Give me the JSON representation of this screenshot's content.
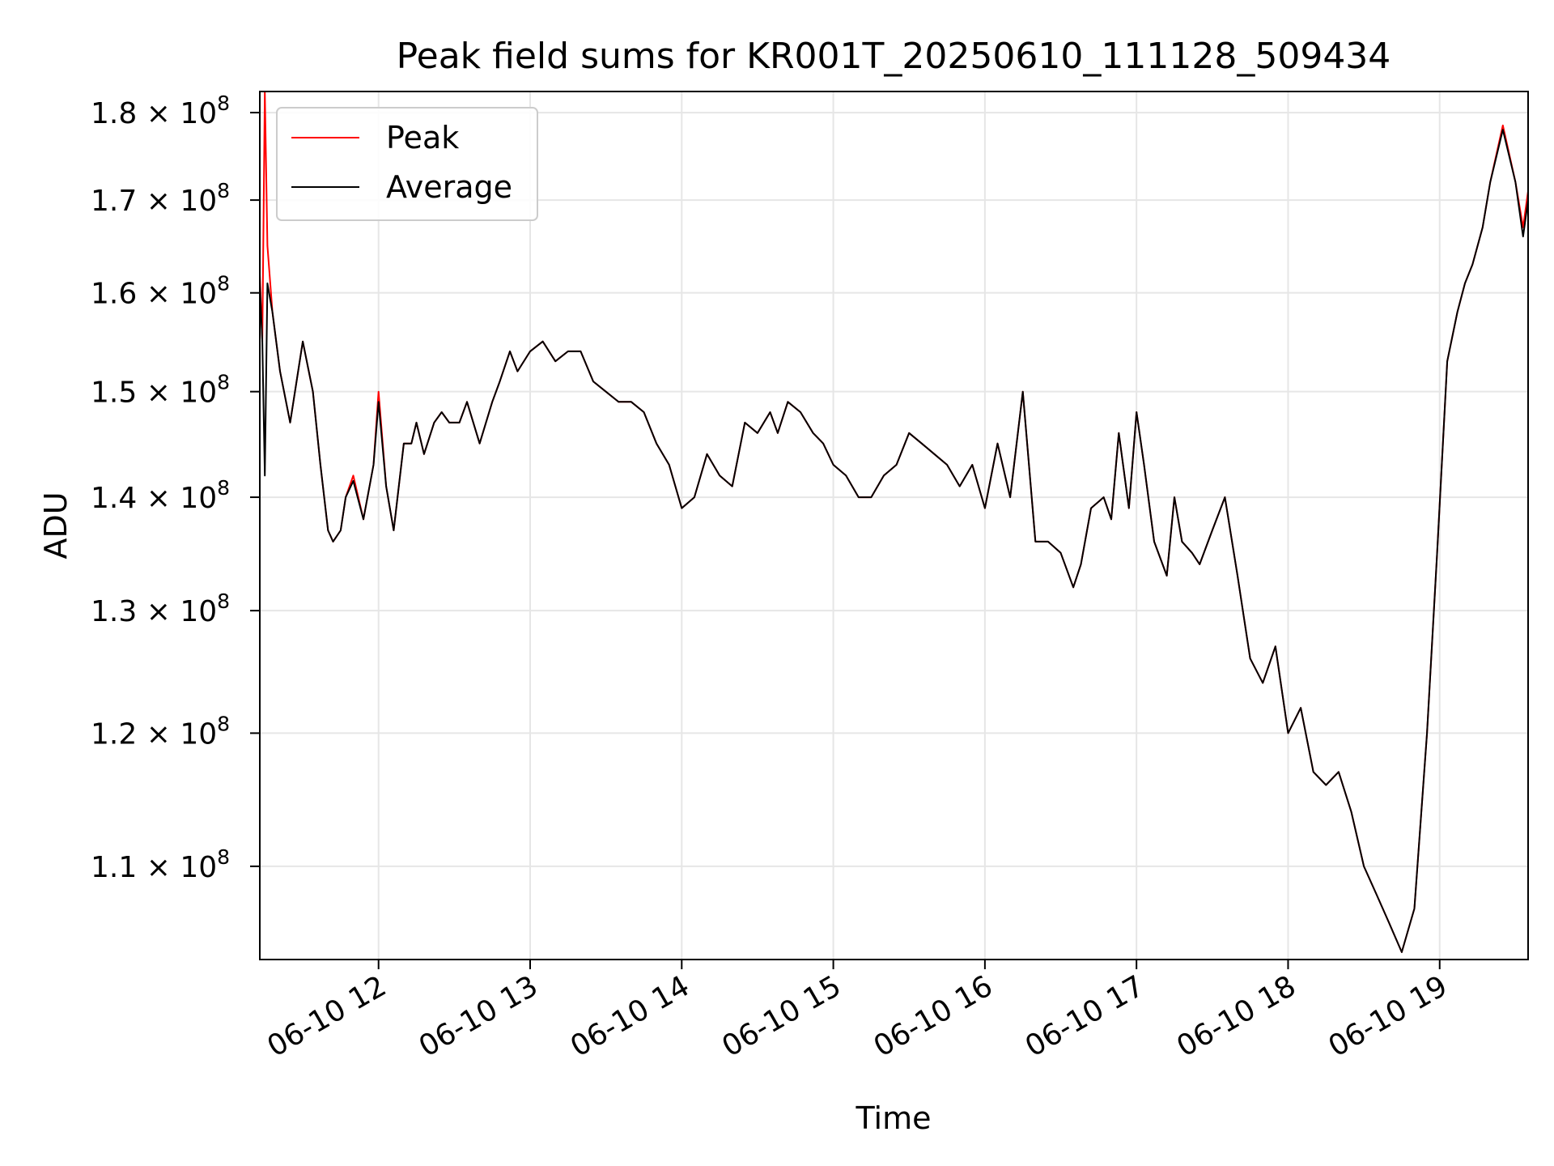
{
  "chart_data": {
    "type": "line",
    "title": "Peak field sums for KR001T_20250610_111128_509434",
    "xlabel": "Time",
    "ylabel": "ADU",
    "y_scale": "log",
    "ylim": [
      103500000,
      182500000
    ],
    "xlim": [
      "06-10 11:13",
      "06-10 19:35"
    ],
    "grid": true,
    "legend_position": "upper-left",
    "x_ticks": [
      {
        "t": "06-10 12:00",
        "label": "06-10 12"
      },
      {
        "t": "06-10 13:00",
        "label": "06-10 13"
      },
      {
        "t": "06-10 14:00",
        "label": "06-10 14"
      },
      {
        "t": "06-10 15:00",
        "label": "06-10 15"
      },
      {
        "t": "06-10 16:00",
        "label": "06-10 16"
      },
      {
        "t": "06-10 17:00",
        "label": "06-10 17"
      },
      {
        "t": "06-10 18:00",
        "label": "06-10 18"
      },
      {
        "t": "06-10 19:00",
        "label": "06-10 19"
      }
    ],
    "y_ticks": [
      {
        "value": 110000000,
        "mantissa": "1.1",
        "exponent": "8"
      },
      {
        "value": 120000000,
        "mantissa": "1.2",
        "exponent": "8"
      },
      {
        "value": 130000000,
        "mantissa": "1.3",
        "exponent": "8"
      },
      {
        "value": 140000000,
        "mantissa": "1.4",
        "exponent": "8"
      },
      {
        "value": 150000000,
        "mantissa": "1.5",
        "exponent": "8"
      },
      {
        "value": 160000000,
        "mantissa": "1.6",
        "exponent": "8"
      },
      {
        "value": 170000000,
        "mantissa": "1.7",
        "exponent": "8"
      },
      {
        "value": 180000000,
        "mantissa": "1.8",
        "exponent": "8"
      }
    ],
    "series": [
      {
        "name": "Peak",
        "color": "#ff0000",
        "x": [
          "06-10 11:13",
          "06-10 11:14",
          "06-10 11:15",
          "06-10 11:16",
          "06-10 11:18",
          "06-10 11:21",
          "06-10 11:25",
          "06-10 11:30",
          "06-10 11:34",
          "06-10 11:37",
          "06-10 11:40",
          "06-10 11:42",
          "06-10 11:45",
          "06-10 11:47",
          "06-10 11:50",
          "06-10 11:54",
          "06-10 11:58",
          "06-10 12:00",
          "06-10 12:03",
          "06-10 12:06",
          "06-10 12:10",
          "06-10 12:13",
          "06-10 12:15",
          "06-10 12:18",
          "06-10 12:22",
          "06-10 12:25",
          "06-10 12:28",
          "06-10 12:32",
          "06-10 12:35",
          "06-10 12:40",
          "06-10 12:45",
          "06-10 12:48",
          "06-10 12:52",
          "06-10 12:55",
          "06-10 13:00",
          "06-10 13:05",
          "06-10 13:10",
          "06-10 13:15",
          "06-10 13:20",
          "06-10 13:25",
          "06-10 13:30",
          "06-10 13:35",
          "06-10 13:40",
          "06-10 13:45",
          "06-10 13:50",
          "06-10 13:55",
          "06-10 14:00",
          "06-10 14:05",
          "06-10 14:10",
          "06-10 14:15",
          "06-10 14:20",
          "06-10 14:25",
          "06-10 14:30",
          "06-10 14:35",
          "06-10 14:38",
          "06-10 14:42",
          "06-10 14:47",
          "06-10 14:52",
          "06-10 14:56",
          "06-10 15:00",
          "06-10 15:05",
          "06-10 15:10",
          "06-10 15:15",
          "06-10 15:20",
          "06-10 15:25",
          "06-10 15:30",
          "06-10 15:35",
          "06-10 15:40",
          "06-10 15:45",
          "06-10 15:50",
          "06-10 15:55",
          "06-10 16:00",
          "06-10 16:05",
          "06-10 16:10",
          "06-10 16:15",
          "06-10 16:20",
          "06-10 16:25",
          "06-10 16:30",
          "06-10 16:35",
          "06-10 16:38",
          "06-10 16:42",
          "06-10 16:47",
          "06-10 16:50",
          "06-10 16:53",
          "06-10 16:57",
          "06-10 17:00",
          "06-10 17:03",
          "06-10 17:07",
          "06-10 17:12",
          "06-10 17:15",
          "06-10 17:18",
          "06-10 17:22",
          "06-10 17:25",
          "06-10 17:30",
          "06-10 17:35",
          "06-10 17:40",
          "06-10 17:45",
          "06-10 17:50",
          "06-10 17:55",
          "06-10 18:00",
          "06-10 18:05",
          "06-10 18:10",
          "06-10 18:15",
          "06-10 18:20",
          "06-10 18:25",
          "06-10 18:30",
          "06-10 18:35",
          "06-10 18:40",
          "06-10 18:45",
          "06-10 18:50",
          "06-10 18:55",
          "06-10 18:59",
          "06-10 19:03",
          "06-10 19:07",
          "06-10 19:10",
          "06-10 19:13",
          "06-10 19:17",
          "06-10 19:20",
          "06-10 19:25",
          "06-10 19:30",
          "06-10 19:33",
          "06-10 19:35"
        ],
        "y": [
          162000000,
          155000000,
          182500000,
          165000000,
          158000000,
          152000000,
          147000000,
          155000000,
          150000000,
          143000000,
          137000000,
          136000000,
          137000000,
          140000000,
          142000000,
          138000000,
          143000000,
          150000000,
          141000000,
          137000000,
          145000000,
          145000000,
          147000000,
          144000000,
          147000000,
          148000000,
          147000000,
          147000000,
          149000000,
          145000000,
          149000000,
          151000000,
          154000000,
          152000000,
          154000000,
          155000000,
          153000000,
          154000000,
          154000000,
          151000000,
          150000000,
          149000000,
          149000000,
          148000000,
          145000000,
          143000000,
          139000000,
          140000000,
          144000000,
          142000000,
          141000000,
          147000000,
          146000000,
          148000000,
          146000000,
          149000000,
          148000000,
          146000000,
          145000000,
          143000000,
          142000000,
          140000000,
          140000000,
          142000000,
          143000000,
          146000000,
          145000000,
          144000000,
          143000000,
          141000000,
          143000000,
          139000000,
          145000000,
          140000000,
          150000000,
          136000000,
          136000000,
          135000000,
          132000000,
          134000000,
          139000000,
          140000000,
          138000000,
          146000000,
          139000000,
          148000000,
          143000000,
          136000000,
          133000000,
          140000000,
          136000000,
          135000000,
          134000000,
          137000000,
          140000000,
          133000000,
          126000000,
          124000000,
          127000000,
          120000000,
          122000000,
          117000000,
          116000000,
          117000000,
          114000000,
          110000000,
          108000000,
          106000000,
          104000000,
          107000000,
          120000000,
          135000000,
          153000000,
          158000000,
          161000000,
          163000000,
          167000000,
          172000000,
          178500000,
          172000000,
          167000000,
          171000000
        ]
      },
      {
        "name": "Average",
        "color": "#000000",
        "x": [
          "06-10 11:13",
          "06-10 11:14",
          "06-10 11:15",
          "06-10 11:16",
          "06-10 11:18",
          "06-10 11:21",
          "06-10 11:25",
          "06-10 11:30",
          "06-10 11:34",
          "06-10 11:37",
          "06-10 11:40",
          "06-10 11:42",
          "06-10 11:45",
          "06-10 11:47",
          "06-10 11:50",
          "06-10 11:54",
          "06-10 11:58",
          "06-10 12:00",
          "06-10 12:03",
          "06-10 12:06",
          "06-10 12:10",
          "06-10 12:13",
          "06-10 12:15",
          "06-10 12:18",
          "06-10 12:22",
          "06-10 12:25",
          "06-10 12:28",
          "06-10 12:32",
          "06-10 12:35",
          "06-10 12:40",
          "06-10 12:45",
          "06-10 12:48",
          "06-10 12:52",
          "06-10 12:55",
          "06-10 13:00",
          "06-10 13:05",
          "06-10 13:10",
          "06-10 13:15",
          "06-10 13:20",
          "06-10 13:25",
          "06-10 13:30",
          "06-10 13:35",
          "06-10 13:40",
          "06-10 13:45",
          "06-10 13:50",
          "06-10 13:55",
          "06-10 14:00",
          "06-10 14:05",
          "06-10 14:10",
          "06-10 14:15",
          "06-10 14:20",
          "06-10 14:25",
          "06-10 14:30",
          "06-10 14:35",
          "06-10 14:38",
          "06-10 14:42",
          "06-10 14:47",
          "06-10 14:52",
          "06-10 14:56",
          "06-10 15:00",
          "06-10 15:05",
          "06-10 15:10",
          "06-10 15:15",
          "06-10 15:20",
          "06-10 15:25",
          "06-10 15:30",
          "06-10 15:35",
          "06-10 15:40",
          "06-10 15:45",
          "06-10 15:50",
          "06-10 15:55",
          "06-10 16:00",
          "06-10 16:05",
          "06-10 16:10",
          "06-10 16:15",
          "06-10 16:20",
          "06-10 16:25",
          "06-10 16:30",
          "06-10 16:35",
          "06-10 16:38",
          "06-10 16:42",
          "06-10 16:47",
          "06-10 16:50",
          "06-10 16:53",
          "06-10 16:57",
          "06-10 17:00",
          "06-10 17:03",
          "06-10 17:07",
          "06-10 17:12",
          "06-10 17:15",
          "06-10 17:18",
          "06-10 17:22",
          "06-10 17:25",
          "06-10 17:30",
          "06-10 17:35",
          "06-10 17:40",
          "06-10 17:45",
          "06-10 17:50",
          "06-10 17:55",
          "06-10 18:00",
          "06-10 18:05",
          "06-10 18:10",
          "06-10 18:15",
          "06-10 18:20",
          "06-10 18:25",
          "06-10 18:30",
          "06-10 18:35",
          "06-10 18:40",
          "06-10 18:45",
          "06-10 18:50",
          "06-10 18:55",
          "06-10 18:59",
          "06-10 19:03",
          "06-10 19:07",
          "06-10 19:10",
          "06-10 19:13",
          "06-10 19:17",
          "06-10 19:20",
          "06-10 19:25",
          "06-10 19:30",
          "06-10 19:33",
          "06-10 19:35"
        ],
        "y": [
          161000000,
          155000000,
          142000000,
          161000000,
          158000000,
          152000000,
          147000000,
          155000000,
          150000000,
          143000000,
          137000000,
          136000000,
          137000000,
          140000000,
          141500000,
          138000000,
          143000000,
          149000000,
          141000000,
          137000000,
          145000000,
          145000000,
          147000000,
          144000000,
          147000000,
          148000000,
          147000000,
          147000000,
          149000000,
          145000000,
          149000000,
          151000000,
          154000000,
          152000000,
          154000000,
          155000000,
          153000000,
          154000000,
          154000000,
          151000000,
          150000000,
          149000000,
          149000000,
          148000000,
          145000000,
          143000000,
          139000000,
          140000000,
          144000000,
          142000000,
          141000000,
          147000000,
          146000000,
          148000000,
          146000000,
          149000000,
          148000000,
          146000000,
          145000000,
          143000000,
          142000000,
          140000000,
          140000000,
          142000000,
          143000000,
          146000000,
          145000000,
          144000000,
          143000000,
          141000000,
          143000000,
          139000000,
          145000000,
          140000000,
          150000000,
          136000000,
          136000000,
          135000000,
          132000000,
          134000000,
          139000000,
          140000000,
          138000000,
          146000000,
          139000000,
          148000000,
          143000000,
          136000000,
          133000000,
          140000000,
          136000000,
          135000000,
          134000000,
          137000000,
          140000000,
          133000000,
          126000000,
          124000000,
          127000000,
          120000000,
          122000000,
          117000000,
          116000000,
          117000000,
          114000000,
          110000000,
          108000000,
          106000000,
          104000000,
          107000000,
          120000000,
          135000000,
          153000000,
          158000000,
          161000000,
          163000000,
          167000000,
          172000000,
          178000000,
          172000000,
          166000000,
          170000000
        ]
      }
    ]
  }
}
